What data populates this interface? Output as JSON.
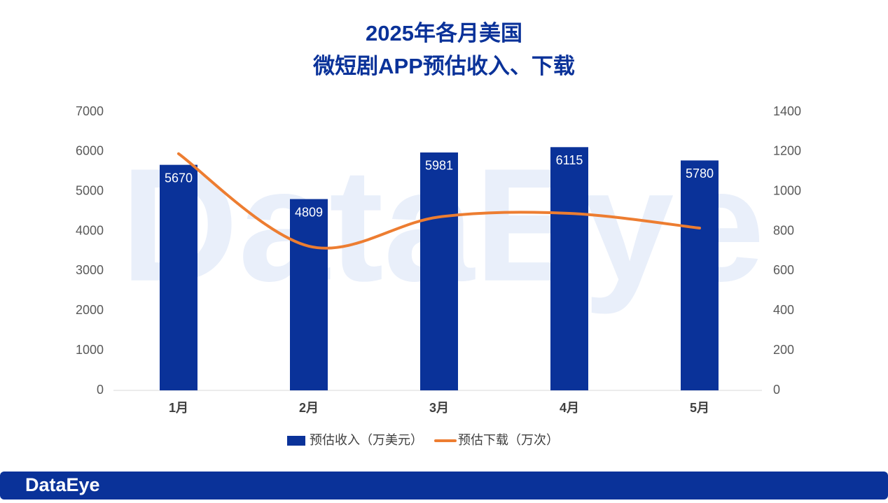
{
  "chart_data": {
    "type": "bar_line",
    "title": [
      "2025年各月美国",
      "微短剧APP预估收入、下载"
    ],
    "watermark": "DataEye",
    "brand": "DataEye",
    "categories": [
      "1月",
      "2月",
      "3月",
      "4月",
      "5月"
    ],
    "series": [
      {
        "name": "预估收入（万美元）",
        "type": "bar",
        "color": "#0a3299",
        "values": [
          5670,
          4809,
          5981,
          6115,
          5780
        ]
      },
      {
        "name": "预估下载（万次）",
        "type": "line",
        "color": "#ed7d31",
        "axis": "y2",
        "values": [
          1190,
          725,
          872,
          890,
          816
        ]
      }
    ],
    "ylim": [
      0,
      7000
    ],
    "yticks": [
      0,
      1000,
      2000,
      3000,
      4000,
      5000,
      6000,
      7000
    ],
    "y2lim": [
      0,
      1400
    ],
    "y2ticks": [
      0,
      200,
      400,
      600,
      800,
      1000,
      1200,
      1400
    ],
    "legend": "bottom"
  }
}
